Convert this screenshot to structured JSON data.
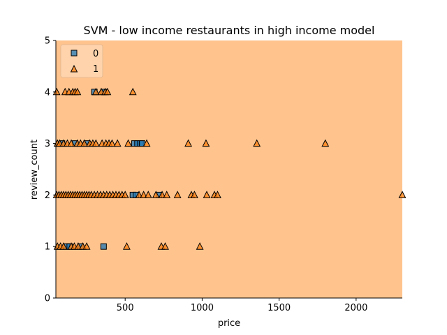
{
  "chart_data": {
    "type": "scatter",
    "title": "SVM - low income restaurants in high income model",
    "xlabel": "price",
    "ylabel": "review_count",
    "xlim": [
      50,
      2300
    ],
    "ylim": [
      0,
      5
    ],
    "xticks": [
      500,
      1000,
      1500,
      2000
    ],
    "yticks": [
      0,
      1,
      2,
      3,
      4,
      5
    ],
    "grid": false,
    "legend_position": "top-left",
    "decision_region": {
      "class": "1",
      "color": "#ffc48e"
    },
    "series": [
      {
        "name": "0",
        "marker": "square",
        "color": "#1f77b4",
        "points": [
          [
            300,
            4
          ],
          [
            360,
            4
          ],
          [
            90,
            3
          ],
          [
            175,
            3
          ],
          [
            250,
            3
          ],
          [
            560,
            3
          ],
          [
            580,
            3
          ],
          [
            600,
            3
          ],
          [
            610,
            3
          ],
          [
            550,
            2
          ],
          [
            570,
            2
          ],
          [
            720,
            2
          ],
          [
            120,
            1
          ],
          [
            140,
            1
          ],
          [
            210,
            1
          ],
          [
            360,
            1
          ]
        ]
      },
      {
        "name": "1",
        "marker": "triangle",
        "color": "#ff7f0e",
        "points": [
          [
            55,
            4
          ],
          [
            110,
            4
          ],
          [
            135,
            4
          ],
          [
            160,
            4
          ],
          [
            175,
            4
          ],
          [
            190,
            4
          ],
          [
            310,
            4
          ],
          [
            345,
            4
          ],
          [
            370,
            4
          ],
          [
            385,
            4
          ],
          [
            550,
            4
          ],
          [
            60,
            3
          ],
          [
            75,
            3
          ],
          [
            100,
            3
          ],
          [
            125,
            3
          ],
          [
            150,
            3
          ],
          [
            190,
            3
          ],
          [
            210,
            3
          ],
          [
            235,
            3
          ],
          [
            270,
            3
          ],
          [
            290,
            3
          ],
          [
            310,
            3
          ],
          [
            350,
            3
          ],
          [
            375,
            3
          ],
          [
            395,
            3
          ],
          [
            415,
            3
          ],
          [
            450,
            3
          ],
          [
            520,
            3
          ],
          [
            640,
            3
          ],
          [
            910,
            3
          ],
          [
            1025,
            3
          ],
          [
            1355,
            3
          ],
          [
            1800,
            3
          ],
          [
            55,
            2
          ],
          [
            70,
            2
          ],
          [
            85,
            2
          ],
          [
            100,
            2
          ],
          [
            115,
            2
          ],
          [
            130,
            2
          ],
          [
            145,
            2
          ],
          [
            160,
            2
          ],
          [
            175,
            2
          ],
          [
            190,
            2
          ],
          [
            205,
            2
          ],
          [
            220,
            2
          ],
          [
            235,
            2
          ],
          [
            250,
            2
          ],
          [
            265,
            2
          ],
          [
            280,
            2
          ],
          [
            300,
            2
          ],
          [
            320,
            2
          ],
          [
            340,
            2
          ],
          [
            360,
            2
          ],
          [
            380,
            2
          ],
          [
            400,
            2
          ],
          [
            420,
            2
          ],
          [
            440,
            2
          ],
          [
            460,
            2
          ],
          [
            480,
            2
          ],
          [
            500,
            2
          ],
          [
            590,
            2
          ],
          [
            620,
            2
          ],
          [
            650,
            2
          ],
          [
            700,
            2
          ],
          [
            740,
            2
          ],
          [
            770,
            2
          ],
          [
            840,
            2
          ],
          [
            930,
            2
          ],
          [
            950,
            2
          ],
          [
            1030,
            2
          ],
          [
            1080,
            2
          ],
          [
            1100,
            2
          ],
          [
            2300,
            2
          ],
          [
            60,
            1
          ],
          [
            80,
            1
          ],
          [
            100,
            1
          ],
          [
            150,
            1
          ],
          [
            170,
            1
          ],
          [
            195,
            1
          ],
          [
            225,
            1
          ],
          [
            250,
            1
          ],
          [
            510,
            1
          ],
          [
            735,
            1
          ],
          [
            760,
            1
          ],
          [
            985,
            1
          ]
        ]
      }
    ]
  }
}
